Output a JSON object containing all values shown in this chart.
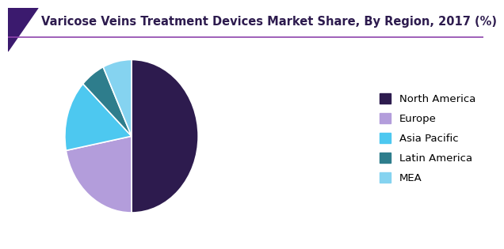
{
  "title": "Varicose Veins Treatment Devices Market Share, By Region, 2017 (%)",
  "labels": [
    "North America",
    "Europe",
    "Asia Pacific",
    "Latin America",
    "MEA"
  ],
  "values": [
    50,
    22,
    15,
    6,
    7
  ],
  "colors": [
    "#2d1b4e",
    "#b39ddb",
    "#4dc8f0",
    "#2e7d8c",
    "#85d3f0"
  ],
  "legend_labels": [
    "North America",
    "Europe",
    "Asia Pacific",
    "Latin America",
    "MEA"
  ],
  "title_fontsize": 10.5,
  "legend_fontsize": 9.5,
  "bg_color": "#ffffff",
  "title_color": "#2d1b4e",
  "startangle": 90,
  "header_dark": "#3b1a6e",
  "header_line": "#8e44ad"
}
